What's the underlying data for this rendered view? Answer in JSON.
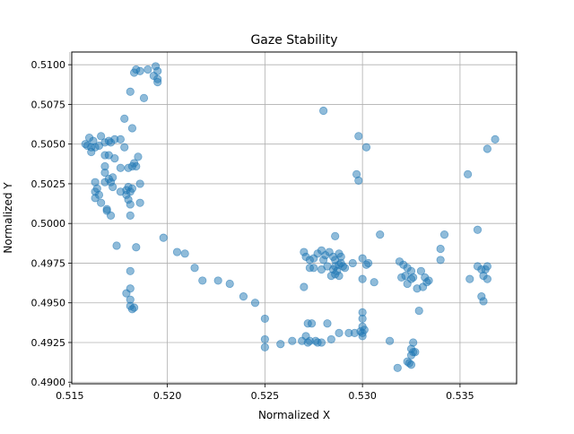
{
  "chart_data": {
    "type": "scatter",
    "title": "Gaze Stability",
    "xlabel": "Normalized X",
    "ylabel": "Normalized Y",
    "xlim": [
      0.5151,
      0.5379
    ],
    "ylim": [
      0.4899,
      0.5108
    ],
    "grid": true,
    "x_ticks": [
      0.515,
      0.52,
      0.525,
      0.53,
      0.535
    ],
    "x_tick_labels": [
      "0.515",
      "0.520",
      "0.525",
      "0.530",
      "0.535"
    ],
    "y_ticks": [
      0.49,
      0.4925,
      0.495,
      0.4975,
      0.5,
      0.5025,
      0.505,
      0.5075,
      0.51
    ],
    "y_tick_labels": [
      "0.4900",
      "0.4925",
      "0.4950",
      "0.4975",
      "0.5000",
      "0.5025",
      "0.5050",
      "0.5075",
      "0.5100"
    ],
    "point_color": "#1f77b4",
    "points": [
      [
        0.519,
        0.5097
      ],
      [
        0.5194,
        0.5099
      ],
      [
        0.5195,
        0.5096
      ],
      [
        0.5193,
        0.5093
      ],
      [
        0.5195,
        0.5091
      ],
      [
        0.5195,
        0.5089
      ],
      [
        0.5186,
        0.5096
      ],
      [
        0.5184,
        0.5097
      ],
      [
        0.5183,
        0.5095
      ],
      [
        0.5181,
        0.5083
      ],
      [
        0.5188,
        0.5079
      ],
      [
        0.5178,
        0.5066
      ],
      [
        0.5182,
        0.506
      ],
      [
        0.516,
        0.5054
      ],
      [
        0.5162,
        0.5052
      ],
      [
        0.5158,
        0.505
      ],
      [
        0.5159,
        0.5049
      ],
      [
        0.5161,
        0.5048
      ],
      [
        0.5163,
        0.5048
      ],
      [
        0.5165,
        0.5049
      ],
      [
        0.5161,
        0.5045
      ],
      [
        0.5168,
        0.5051
      ],
      [
        0.517,
        0.5052
      ],
      [
        0.5171,
        0.5051
      ],
      [
        0.5173,
        0.5053
      ],
      [
        0.5176,
        0.5053
      ],
      [
        0.5166,
        0.5055
      ],
      [
        0.5178,
        0.5048
      ],
      [
        0.5168,
        0.5043
      ],
      [
        0.517,
        0.5043
      ],
      [
        0.5173,
        0.5041
      ],
      [
        0.5168,
        0.5036
      ],
      [
        0.5176,
        0.5035
      ],
      [
        0.518,
        0.5035
      ],
      [
        0.5182,
        0.5036
      ],
      [
        0.5183,
        0.5038
      ],
      [
        0.5185,
        0.5042
      ],
      [
        0.5184,
        0.5036
      ],
      [
        0.5168,
        0.5032
      ],
      [
        0.5172,
        0.5029
      ],
      [
        0.517,
        0.5028
      ],
      [
        0.5168,
        0.5026
      ],
      [
        0.5171,
        0.5026
      ],
      [
        0.5172,
        0.5023
      ],
      [
        0.5163,
        0.5026
      ],
      [
        0.5164,
        0.5022
      ],
      [
        0.5163,
        0.502
      ],
      [
        0.5165,
        0.5018
      ],
      [
        0.5163,
        0.5016
      ],
      [
        0.5176,
        0.502
      ],
      [
        0.5179,
        0.5021
      ],
      [
        0.518,
        0.5023
      ],
      [
        0.5179,
        0.5018
      ],
      [
        0.5181,
        0.502
      ],
      [
        0.5182,
        0.5022
      ],
      [
        0.518,
        0.5015
      ],
      [
        0.5181,
        0.5012
      ],
      [
        0.5186,
        0.5025
      ],
      [
        0.5186,
        0.5013
      ],
      [
        0.5166,
        0.5013
      ],
      [
        0.5169,
        0.5009
      ],
      [
        0.5169,
        0.5008
      ],
      [
        0.5171,
        0.5005
      ],
      [
        0.5181,
        0.5005
      ],
      [
        0.5174,
        0.4986
      ],
      [
        0.5184,
        0.4985
      ],
      [
        0.5181,
        0.497
      ],
      [
        0.5179,
        0.4956
      ],
      [
        0.5181,
        0.4959
      ],
      [
        0.5181,
        0.4952
      ],
      [
        0.5181,
        0.4948
      ],
      [
        0.5182,
        0.4946
      ],
      [
        0.5183,
        0.4947
      ],
      [
        0.5198,
        0.4991
      ],
      [
        0.5205,
        0.4982
      ],
      [
        0.5209,
        0.4981
      ],
      [
        0.5214,
        0.4972
      ],
      [
        0.5218,
        0.4964
      ],
      [
        0.5226,
        0.4964
      ],
      [
        0.5232,
        0.4962
      ],
      [
        0.5239,
        0.4954
      ],
      [
        0.5245,
        0.495
      ],
      [
        0.525,
        0.494
      ],
      [
        0.525,
        0.4927
      ],
      [
        0.525,
        0.4922
      ],
      [
        0.5258,
        0.4924
      ],
      [
        0.5264,
        0.4926
      ],
      [
        0.5269,
        0.4926
      ],
      [
        0.5271,
        0.4929
      ],
      [
        0.5273,
        0.4926
      ],
      [
        0.5276,
        0.4926
      ],
      [
        0.5279,
        0.4925
      ],
      [
        0.5284,
        0.4927
      ],
      [
        0.5288,
        0.4931
      ],
      [
        0.5293,
        0.4931
      ],
      [
        0.5296,
        0.4931
      ],
      [
        0.5299,
        0.4932
      ],
      [
        0.53,
        0.4929
      ],
      [
        0.53,
        0.4931
      ],
      [
        0.5301,
        0.4933
      ],
      [
        0.53,
        0.4935
      ],
      [
        0.53,
        0.494
      ],
      [
        0.53,
        0.4944
      ],
      [
        0.5272,
        0.4937
      ],
      [
        0.5274,
        0.4937
      ],
      [
        0.527,
        0.496
      ],
      [
        0.528,
        0.5071
      ],
      [
        0.5298,
        0.5055
      ],
      [
        0.5302,
        0.5048
      ],
      [
        0.5297,
        0.5031
      ],
      [
        0.5298,
        0.5027
      ],
      [
        0.5286,
        0.4992
      ],
      [
        0.5309,
        0.4993
      ],
      [
        0.527,
        0.4982
      ],
      [
        0.5271,
        0.4979
      ],
      [
        0.5273,
        0.4977
      ],
      [
        0.5275,
        0.4978
      ],
      [
        0.5277,
        0.4981
      ],
      [
        0.5279,
        0.4983
      ],
      [
        0.5281,
        0.498
      ],
      [
        0.5283,
        0.4982
      ],
      [
        0.5285,
        0.4979
      ],
      [
        0.5286,
        0.4977
      ],
      [
        0.5288,
        0.4981
      ],
      [
        0.5289,
        0.4979
      ],
      [
        0.528,
        0.4977
      ],
      [
        0.5282,
        0.4973
      ],
      [
        0.5279,
        0.4971
      ],
      [
        0.5285,
        0.4971
      ],
      [
        0.5286,
        0.4973
      ],
      [
        0.5288,
        0.4974
      ],
      [
        0.5289,
        0.4975
      ],
      [
        0.529,
        0.4973
      ],
      [
        0.5287,
        0.497
      ],
      [
        0.5286,
        0.4968
      ],
      [
        0.5284,
        0.4967
      ],
      [
        0.5288,
        0.4967
      ],
      [
        0.5291,
        0.4972
      ],
      [
        0.5295,
        0.4975
      ],
      [
        0.53,
        0.4978
      ],
      [
        0.5302,
        0.4974
      ],
      [
        0.5303,
        0.4975
      ],
      [
        0.53,
        0.4965
      ],
      [
        0.5306,
        0.4963
      ],
      [
        0.5273,
        0.4972
      ],
      [
        0.5275,
        0.4972
      ],
      [
        0.5282,
        0.4937
      ],
      [
        0.5277,
        0.4925
      ],
      [
        0.5272,
        0.4925
      ],
      [
        0.5319,
        0.4976
      ],
      [
        0.5321,
        0.4974
      ],
      [
        0.5323,
        0.4972
      ],
      [
        0.5325,
        0.497
      ],
      [
        0.5322,
        0.4967
      ],
      [
        0.532,
        0.4966
      ],
      [
        0.5323,
        0.4962
      ],
      [
        0.5325,
        0.4965
      ],
      [
        0.5326,
        0.4966
      ],
      [
        0.5328,
        0.4959
      ],
      [
        0.533,
        0.497
      ],
      [
        0.5332,
        0.4966
      ],
      [
        0.5333,
        0.4963
      ],
      [
        0.5331,
        0.496
      ],
      [
        0.5334,
        0.4964
      ],
      [
        0.5329,
        0.4945
      ],
      [
        0.534,
        0.4984
      ],
      [
        0.5342,
        0.4993
      ],
      [
        0.534,
        0.4977
      ],
      [
        0.5314,
        0.4926
      ],
      [
        0.5318,
        0.4909
      ],
      [
        0.5323,
        0.4913
      ],
      [
        0.5324,
        0.4912
      ],
      [
        0.5325,
        0.4917
      ],
      [
        0.5326,
        0.4919
      ],
      [
        0.5325,
        0.4921
      ],
      [
        0.5326,
        0.4925
      ],
      [
        0.5325,
        0.4911
      ],
      [
        0.5327,
        0.4919
      ],
      [
        0.5354,
        0.5031
      ],
      [
        0.5364,
        0.5047
      ],
      [
        0.5368,
        0.5053
      ],
      [
        0.5359,
        0.4996
      ],
      [
        0.5359,
        0.4973
      ],
      [
        0.5361,
        0.4971
      ],
      [
        0.5363,
        0.4971
      ],
      [
        0.5364,
        0.4973
      ],
      [
        0.5362,
        0.4967
      ],
      [
        0.5364,
        0.4965
      ],
      [
        0.5355,
        0.4965
      ],
      [
        0.5361,
        0.4954
      ],
      [
        0.5362,
        0.4951
      ]
    ]
  }
}
